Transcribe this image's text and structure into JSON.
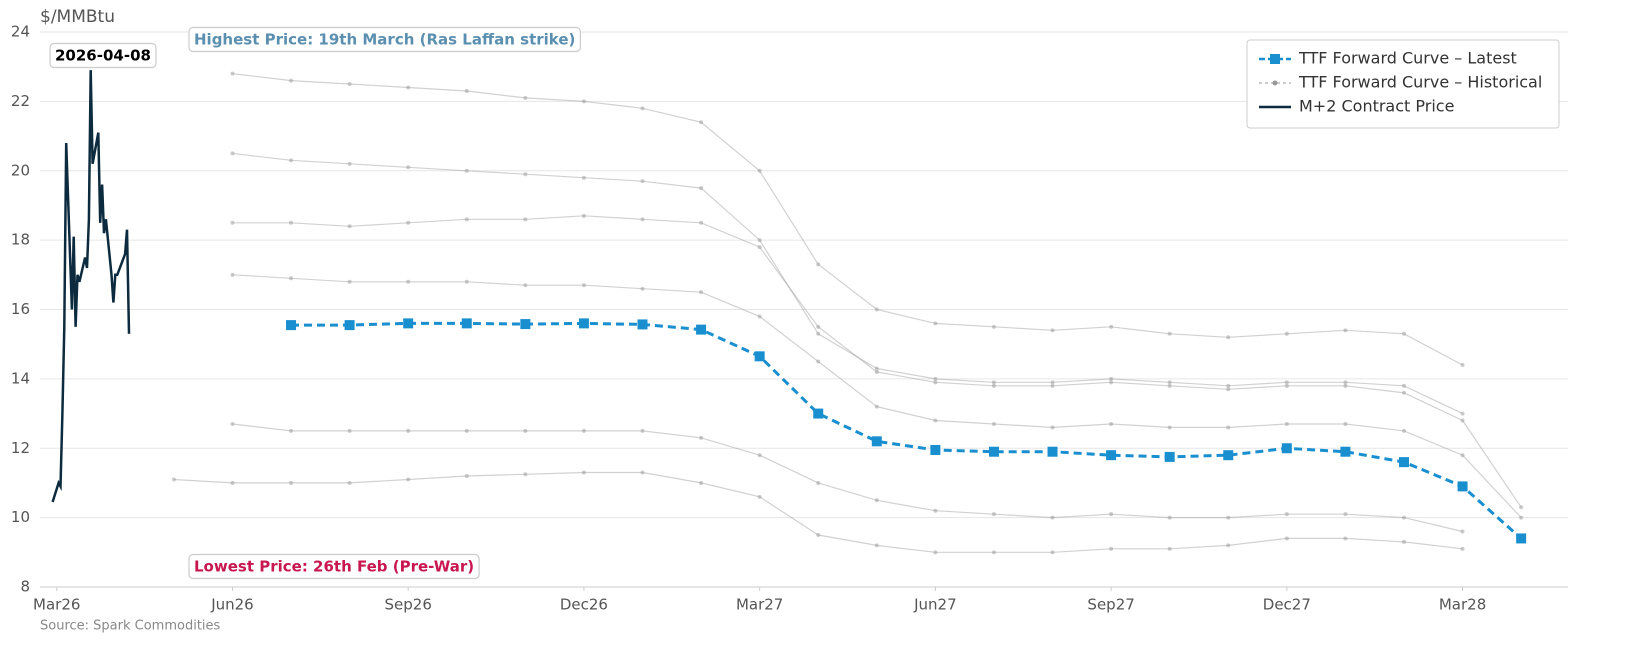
{
  "chart_data": {
    "type": "line",
    "y_label": "$/MMBtu",
    "source": "Source: Spark Commodities",
    "ylim": [
      8,
      24
    ],
    "yticks": [
      8,
      10,
      12,
      14,
      16,
      18,
      20,
      22,
      24
    ],
    "xlim": [
      "2026-02-21",
      "2028-04-25"
    ],
    "xticks": [
      {
        "value": "2026-03",
        "label": "Mar26"
      },
      {
        "value": "2026-06",
        "label": "Jun26"
      },
      {
        "value": "2026-09",
        "label": "Sep26"
      },
      {
        "value": "2026-12",
        "label": "Dec26"
      },
      {
        "value": "2027-03",
        "label": "Mar27"
      },
      {
        "value": "2027-06",
        "label": "Jun27"
      },
      {
        "value": "2027-09",
        "label": "Sep27"
      },
      {
        "value": "2027-12",
        "label": "Dec27"
      },
      {
        "value": "2028-03",
        "label": "Mar28"
      }
    ],
    "grid": true,
    "legend": "top-right",
    "annotations": [
      {
        "text": "2026-04-08",
        "color": "#000000"
      },
      {
        "text": "Highest Price: 19th March (Ras Laffan strike)",
        "color": "#5b8fb0"
      },
      {
        "text": "Lowest Price: 26th Feb (Pre-War)",
        "color": "#c8174f"
      }
    ],
    "series": [
      {
        "name": "TTF Forward Curve – Latest",
        "color": "#1a8fd0",
        "style": "dashed-square",
        "x": [
          "2026-07",
          "2026-08",
          "2026-09",
          "2026-10",
          "2026-11",
          "2026-12",
          "2027-01",
          "2027-02",
          "2027-03",
          "2027-04",
          "2027-05",
          "2027-06",
          "2027-07",
          "2027-08",
          "2027-09",
          "2027-10",
          "2027-11",
          "2027-12",
          "2028-01",
          "2028-02",
          "2028-03",
          "2028-04"
        ],
        "values": [
          15.55,
          15.55,
          15.6,
          15.6,
          15.58,
          15.6,
          15.57,
          15.42,
          14.65,
          13.0,
          12.2,
          11.95,
          11.9,
          11.9,
          11.8,
          11.75,
          11.8,
          12.0,
          11.9,
          11.6,
          10.9,
          9.4
        ]
      },
      {
        "name": "TTF Forward Curve – Historical",
        "color": "#999999",
        "style": "thin-dot",
        "curves": [
          {
            "x": [
              "2026-06",
              "2026-07",
              "2026-08",
              "2026-09",
              "2026-10",
              "2026-11",
              "2026-12",
              "2027-01",
              "2027-02",
              "2027-03",
              "2027-04",
              "2027-05",
              "2027-06",
              "2027-07",
              "2027-08",
              "2027-09",
              "2027-10",
              "2027-11",
              "2027-12",
              "2028-01",
              "2028-02",
              "2028-03"
            ],
            "values": [
              22.8,
              22.6,
              22.5,
              22.4,
              22.3,
              22.1,
              22.0,
              21.8,
              21.4,
              20.0,
              17.3,
              16.0,
              15.6,
              15.5,
              15.4,
              15.5,
              15.3,
              15.2,
              15.3,
              15.4,
              15.3,
              14.4
            ]
          },
          {
            "x": [
              "2026-06",
              "2026-07",
              "2026-08",
              "2026-09",
              "2026-10",
              "2026-11",
              "2026-12",
              "2027-01",
              "2027-02",
              "2027-03",
              "2027-04",
              "2027-05",
              "2027-06",
              "2027-07",
              "2027-08",
              "2027-09",
              "2027-10",
              "2027-11",
              "2027-12",
              "2028-01",
              "2028-02",
              "2028-03"
            ],
            "values": [
              20.5,
              20.3,
              20.2,
              20.1,
              20.0,
              19.9,
              19.8,
              19.7,
              19.5,
              18.0,
              15.3,
              14.3,
              14.0,
              13.9,
              13.9,
              14.0,
              13.9,
              13.8,
              13.9,
              13.9,
              13.8,
              13.0
            ]
          },
          {
            "x": [
              "2026-06",
              "2026-07",
              "2026-08",
              "2026-09",
              "2026-10",
              "2026-11",
              "2026-12",
              "2027-01",
              "2027-02",
              "2027-03",
              "2027-04",
              "2027-05",
              "2027-06",
              "2027-07",
              "2027-08",
              "2027-09",
              "2027-10",
              "2027-11",
              "2027-12",
              "2028-01",
              "2028-02",
              "2028-03",
              "2028-04"
            ],
            "values": [
              18.5,
              18.5,
              18.4,
              18.5,
              18.6,
              18.6,
              18.7,
              18.6,
              18.5,
              17.8,
              15.5,
              14.2,
              13.9,
              13.8,
              13.8,
              13.9,
              13.8,
              13.7,
              13.8,
              13.8,
              13.6,
              12.8,
              10.3
            ]
          },
          {
            "x": [
              "2026-06",
              "2026-07",
              "2026-08",
              "2026-09",
              "2026-10",
              "2026-11",
              "2026-12",
              "2027-01",
              "2027-02",
              "2027-03",
              "2027-04",
              "2027-05",
              "2027-06",
              "2027-07",
              "2027-08",
              "2027-09",
              "2027-10",
              "2027-11",
              "2027-12",
              "2028-01",
              "2028-02",
              "2028-03",
              "2028-04"
            ],
            "values": [
              17.0,
              16.9,
              16.8,
              16.8,
              16.8,
              16.7,
              16.7,
              16.6,
              16.5,
              15.8,
              14.5,
              13.2,
              12.8,
              12.7,
              12.6,
              12.7,
              12.6,
              12.6,
              12.7,
              12.7,
              12.5,
              11.8,
              10.0
            ]
          },
          {
            "x": [
              "2026-06",
              "2026-07",
              "2026-08",
              "2026-09",
              "2026-10",
              "2026-11",
              "2026-12",
              "2027-01",
              "2027-02",
              "2027-03",
              "2027-04",
              "2027-05",
              "2027-06",
              "2027-07",
              "2027-08",
              "2027-09",
              "2027-10",
              "2027-11",
              "2027-12",
              "2028-01",
              "2028-02",
              "2028-03"
            ],
            "values": [
              12.7,
              12.5,
              12.5,
              12.5,
              12.5,
              12.5,
              12.5,
              12.5,
              12.3,
              11.8,
              11.0,
              10.5,
              10.2,
              10.1,
              10.0,
              10.1,
              10.0,
              10.0,
              10.1,
              10.1,
              10.0,
              9.6
            ]
          },
          {
            "x": [
              "2026-05",
              "2026-06",
              "2026-07",
              "2026-08",
              "2026-09",
              "2026-10",
              "2026-11",
              "2026-12",
              "2027-01",
              "2027-02",
              "2027-03",
              "2027-04",
              "2027-05",
              "2027-06",
              "2027-07",
              "2027-08",
              "2027-09",
              "2027-10",
              "2027-11",
              "2027-12",
              "2028-01",
              "2028-02",
              "2028-03"
            ],
            "values": [
              11.1,
              11.0,
              11.0,
              11.0,
              11.1,
              11.2,
              11.25,
              11.3,
              11.3,
              11.0,
              10.6,
              9.5,
              9.2,
              9.0,
              9.0,
              9.0,
              9.1,
              9.1,
              9.2,
              9.4,
              9.4,
              9.3,
              9.1
            ]
          }
        ]
      },
      {
        "name": "M+2 Contract Price",
        "color": "#0d2b3e",
        "style": "solid",
        "x": [
          "2026-02-27",
          "2026-03-02",
          "2026-03-03",
          "2026-03-04",
          "2026-03-05",
          "2026-03-06",
          "2026-03-09",
          "2026-03-10",
          "2026-03-11",
          "2026-03-12",
          "2026-03-13",
          "2026-03-16",
          "2026-03-17",
          "2026-03-18",
          "2026-03-19",
          "2026-03-20",
          "2026-03-23",
          "2026-03-24",
          "2026-03-25",
          "2026-03-26",
          "2026-03-27",
          "2026-03-30",
          "2026-03-31",
          "2026-04-01",
          "2026-04-02",
          "2026-04-06",
          "2026-04-07",
          "2026-04-08"
        ],
        "values": [
          10.45,
          11.0,
          10.9,
          13.0,
          15.5,
          20.8,
          16.0,
          18.1,
          15.5,
          17.0,
          16.8,
          17.5,
          17.2,
          18.6,
          22.9,
          20.2,
          21.1,
          18.5,
          19.6,
          18.2,
          18.6,
          17.0,
          16.2,
          17.0,
          17.0,
          17.6,
          18.3,
          15.3
        ]
      }
    ]
  }
}
